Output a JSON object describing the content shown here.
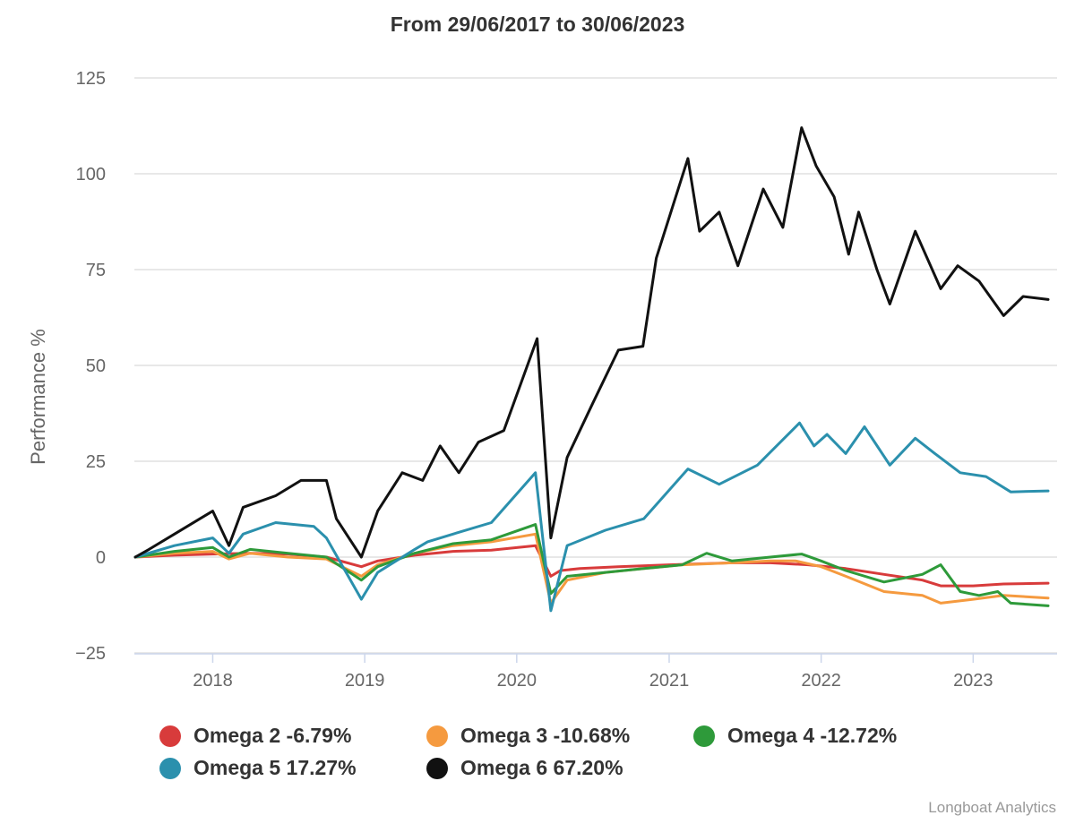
{
  "chart_data": {
    "type": "line",
    "title": "From 29/06/2017 to 30/06/2023",
    "xlabel": "",
    "ylabel": "Performance %",
    "xlim": [
      "2017-06-29",
      "2023-06-30"
    ],
    "ylim": [
      -25,
      125
    ],
    "y_ticks": [
      -25,
      0,
      25,
      50,
      75,
      100,
      125
    ],
    "x_ticks": [
      "2018",
      "2019",
      "2020",
      "2021",
      "2022",
      "2023"
    ],
    "grid": "horizontal",
    "legend_position": "bottom",
    "credit": "Longboat Analytics",
    "series": [
      {
        "name": "Omega 2",
        "final_label": "-6.79%",
        "color": "#d83b3b",
        "points": [
          [
            "2017-06-29",
            0
          ],
          [
            "2017-10-01",
            0.5
          ],
          [
            "2018-01-01",
            0.8
          ],
          [
            "2018-04-01",
            1
          ],
          [
            "2018-07-01",
            0.8
          ],
          [
            "2018-10-01",
            0
          ],
          [
            "2018-12-24",
            -2.5
          ],
          [
            "2019-02-01",
            -1
          ],
          [
            "2019-05-01",
            0.5
          ],
          [
            "2019-08-01",
            1.5
          ],
          [
            "2019-11-01",
            1.8
          ],
          [
            "2020-02-15",
            3
          ],
          [
            "2020-03-23",
            -5
          ],
          [
            "2020-04-15",
            -3.5
          ],
          [
            "2020-06-01",
            -3
          ],
          [
            "2020-09-01",
            -2.5
          ],
          [
            "2021-01-01",
            -2
          ],
          [
            "2021-06-01",
            -1.5
          ],
          [
            "2021-09-01",
            -1.5
          ],
          [
            "2021-12-01",
            -2
          ],
          [
            "2022-03-01",
            -3
          ],
          [
            "2022-06-01",
            -4.5
          ],
          [
            "2022-09-01",
            -6
          ],
          [
            "2022-10-15",
            -7.5
          ],
          [
            "2023-01-01",
            -7.5
          ],
          [
            "2023-03-15",
            -7
          ],
          [
            "2023-06-30",
            -6.79
          ]
        ]
      },
      {
        "name": "Omega 3",
        "final_label": "-10.68%",
        "color": "#f59a3f",
        "points": [
          [
            "2017-06-29",
            0
          ],
          [
            "2017-10-01",
            1
          ],
          [
            "2018-01-01",
            1.5
          ],
          [
            "2018-02-09",
            -0.5
          ],
          [
            "2018-04-01",
            1
          ],
          [
            "2018-07-01",
            0
          ],
          [
            "2018-10-01",
            -0.5
          ],
          [
            "2018-12-24",
            -5
          ],
          [
            "2019-02-01",
            -2
          ],
          [
            "2019-05-01",
            1
          ],
          [
            "2019-08-01",
            3
          ],
          [
            "2019-11-01",
            4
          ],
          [
            "2020-02-15",
            6
          ],
          [
            "2020-03-23",
            -12
          ],
          [
            "2020-05-01",
            -6
          ],
          [
            "2020-08-01",
            -4
          ],
          [
            "2020-11-01",
            -3
          ],
          [
            "2021-02-01",
            -2
          ],
          [
            "2021-06-01",
            -1.5
          ],
          [
            "2021-09-01",
            -1
          ],
          [
            "2021-11-01",
            -1
          ],
          [
            "2022-01-01",
            -2.5
          ],
          [
            "2022-03-01",
            -5
          ],
          [
            "2022-06-01",
            -9
          ],
          [
            "2022-09-01",
            -10
          ],
          [
            "2022-10-15",
            -12
          ],
          [
            "2023-01-01",
            -11
          ],
          [
            "2023-03-15",
            -10
          ],
          [
            "2023-06-30",
            -10.68
          ]
        ]
      },
      {
        "name": "Omega 4",
        "final_label": "-12.72%",
        "color": "#2e9a3a",
        "points": [
          [
            "2017-06-29",
            0
          ],
          [
            "2017-10-01",
            1.5
          ],
          [
            "2018-01-01",
            2.5
          ],
          [
            "2018-02-09",
            0
          ],
          [
            "2018-04-01",
            2
          ],
          [
            "2018-07-01",
            1
          ],
          [
            "2018-10-01",
            0
          ],
          [
            "2018-12-24",
            -6
          ],
          [
            "2019-02-01",
            -2.5
          ],
          [
            "2019-05-01",
            1
          ],
          [
            "2019-08-01",
            3.5
          ],
          [
            "2019-11-01",
            4.5
          ],
          [
            "2020-02-15",
            8.5
          ],
          [
            "2020-03-23",
            -9.5
          ],
          [
            "2020-05-01",
            -5
          ],
          [
            "2020-08-01",
            -4
          ],
          [
            "2020-11-01",
            -3
          ],
          [
            "2021-02-01",
            -2
          ],
          [
            "2021-04-01",
            1
          ],
          [
            "2021-06-01",
            -1
          ],
          [
            "2021-09-01",
            0
          ],
          [
            "2021-11-15",
            0.8
          ],
          [
            "2022-01-01",
            -1
          ],
          [
            "2022-03-01",
            -3.5
          ],
          [
            "2022-06-01",
            -6.5
          ],
          [
            "2022-09-01",
            -4.5
          ],
          [
            "2022-10-15",
            -2
          ],
          [
            "2022-12-01",
            -9
          ],
          [
            "2023-01-15",
            -10
          ],
          [
            "2023-03-01",
            -9
          ],
          [
            "2023-04-01",
            -12
          ],
          [
            "2023-06-30",
            -12.72
          ]
        ]
      },
      {
        "name": "Omega 5",
        "final_label": "17.27%",
        "color": "#2b90ad",
        "points": [
          [
            "2017-06-29",
            0
          ],
          [
            "2017-10-01",
            3
          ],
          [
            "2018-01-01",
            5
          ],
          [
            "2018-02-09",
            1
          ],
          [
            "2018-03-15",
            6
          ],
          [
            "2018-06-01",
            9
          ],
          [
            "2018-09-01",
            8
          ],
          [
            "2018-10-01",
            5
          ],
          [
            "2018-12-24",
            -11
          ],
          [
            "2019-02-01",
            -4
          ],
          [
            "2019-05-01",
            2
          ],
          [
            "2019-06-01",
            4
          ],
          [
            "2019-08-01",
            6
          ],
          [
            "2019-11-01",
            9
          ],
          [
            "2020-02-15",
            22
          ],
          [
            "2020-03-23",
            -14
          ],
          [
            "2020-05-01",
            3
          ],
          [
            "2020-08-01",
            7
          ],
          [
            "2020-11-01",
            10
          ],
          [
            "2021-02-15",
            23
          ],
          [
            "2021-05-01",
            19
          ],
          [
            "2021-08-01",
            24
          ],
          [
            "2021-11-10",
            35
          ],
          [
            "2021-12-15",
            29
          ],
          [
            "2022-01-15",
            32
          ],
          [
            "2022-03-01",
            27
          ],
          [
            "2022-04-15",
            34
          ],
          [
            "2022-06-15",
            24
          ],
          [
            "2022-08-15",
            31
          ],
          [
            "2022-10-01",
            27
          ],
          [
            "2022-12-01",
            22
          ],
          [
            "2023-02-01",
            21
          ],
          [
            "2023-04-01",
            17
          ],
          [
            "2023-06-30",
            17.27
          ]
        ]
      },
      {
        "name": "Omega 6",
        "final_label": "67.20%",
        "color": "#111111",
        "points": [
          [
            "2017-06-29",
            0
          ],
          [
            "2017-08-01",
            2
          ],
          [
            "2017-10-01",
            6
          ],
          [
            "2017-12-01",
            10
          ],
          [
            "2018-01-01",
            12
          ],
          [
            "2018-02-09",
            3
          ],
          [
            "2018-03-15",
            13
          ],
          [
            "2018-06-01",
            16
          ],
          [
            "2018-08-01",
            20
          ],
          [
            "2018-10-01",
            20
          ],
          [
            "2018-10-25",
            10
          ],
          [
            "2018-12-24",
            0
          ],
          [
            "2019-02-01",
            12
          ],
          [
            "2019-04-01",
            22
          ],
          [
            "2019-05-20",
            20
          ],
          [
            "2019-07-01",
            29
          ],
          [
            "2019-08-15",
            22
          ],
          [
            "2019-10-01",
            30
          ],
          [
            "2019-12-01",
            33
          ],
          [
            "2020-02-19",
            57
          ],
          [
            "2020-03-23",
            5
          ],
          [
            "2020-05-01",
            26
          ],
          [
            "2020-07-01",
            40
          ],
          [
            "2020-09-01",
            54
          ],
          [
            "2020-10-30",
            55
          ],
          [
            "2020-12-01",
            78
          ],
          [
            "2021-02-15",
            104
          ],
          [
            "2021-03-15",
            85
          ],
          [
            "2021-05-01",
            90
          ],
          [
            "2021-06-15",
            76
          ],
          [
            "2021-08-15",
            96
          ],
          [
            "2021-10-01",
            86
          ],
          [
            "2021-11-15",
            112
          ],
          [
            "2021-12-20",
            102
          ],
          [
            "2022-02-01",
            94
          ],
          [
            "2022-03-08",
            79
          ],
          [
            "2022-04-01",
            90
          ],
          [
            "2022-05-15",
            75
          ],
          [
            "2022-06-15",
            66
          ],
          [
            "2022-08-15",
            85
          ],
          [
            "2022-10-15",
            70
          ],
          [
            "2022-11-25",
            76
          ],
          [
            "2023-01-15",
            72
          ],
          [
            "2023-03-15",
            63
          ],
          [
            "2023-05-01",
            68
          ],
          [
            "2023-06-30",
            67.2
          ]
        ]
      }
    ]
  }
}
